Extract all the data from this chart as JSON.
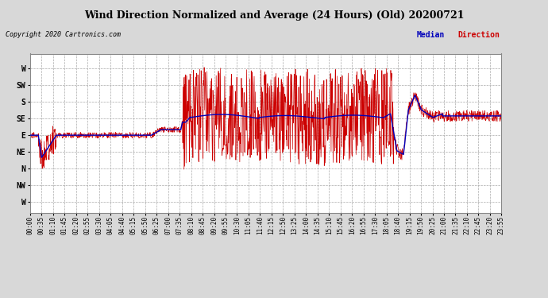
{
  "title": "Wind Direction Normalized and Average (24 Hours) (Old) 20200721",
  "copyright": "Copyright 2020 Cartronics.com",
  "legend_median": "Median",
  "legend_direction": "Direction",
  "ytick_labels": [
    "W",
    "SW",
    "S",
    "SE",
    "E",
    "NE",
    "N",
    "NW",
    "W"
  ],
  "ytick_values": [
    360,
    315,
    270,
    225,
    180,
    135,
    90,
    45,
    0
  ],
  "ymin": -30,
  "ymax": 400,
  "background_color": "#d8d8d8",
  "plot_bg_color": "#ffffff",
  "grid_color": "#aaaaaa",
  "title_color": "#000000",
  "copyright_color": "#000000",
  "median_color": "#0000bb",
  "direction_color": "#cc0000",
  "xtick_labels": [
    "00:00",
    "00:35",
    "01:10",
    "01:45",
    "02:20",
    "02:55",
    "03:30",
    "04:05",
    "04:40",
    "05:15",
    "05:50",
    "06:25",
    "07:00",
    "07:35",
    "08:10",
    "08:45",
    "09:20",
    "09:55",
    "10:30",
    "11:05",
    "11:40",
    "12:15",
    "12:50",
    "13:25",
    "14:00",
    "14:35",
    "15:10",
    "15:45",
    "16:20",
    "16:55",
    "17:30",
    "18:05",
    "18:40",
    "19:15",
    "19:50",
    "20:25",
    "21:00",
    "21:35",
    "22:10",
    "22:45",
    "23:20",
    "23:55"
  ],
  "title_fontsize": 9,
  "copyright_fontsize": 6,
  "legend_fontsize": 7,
  "ytick_fontsize": 7,
  "xtick_fontsize": 5.5
}
